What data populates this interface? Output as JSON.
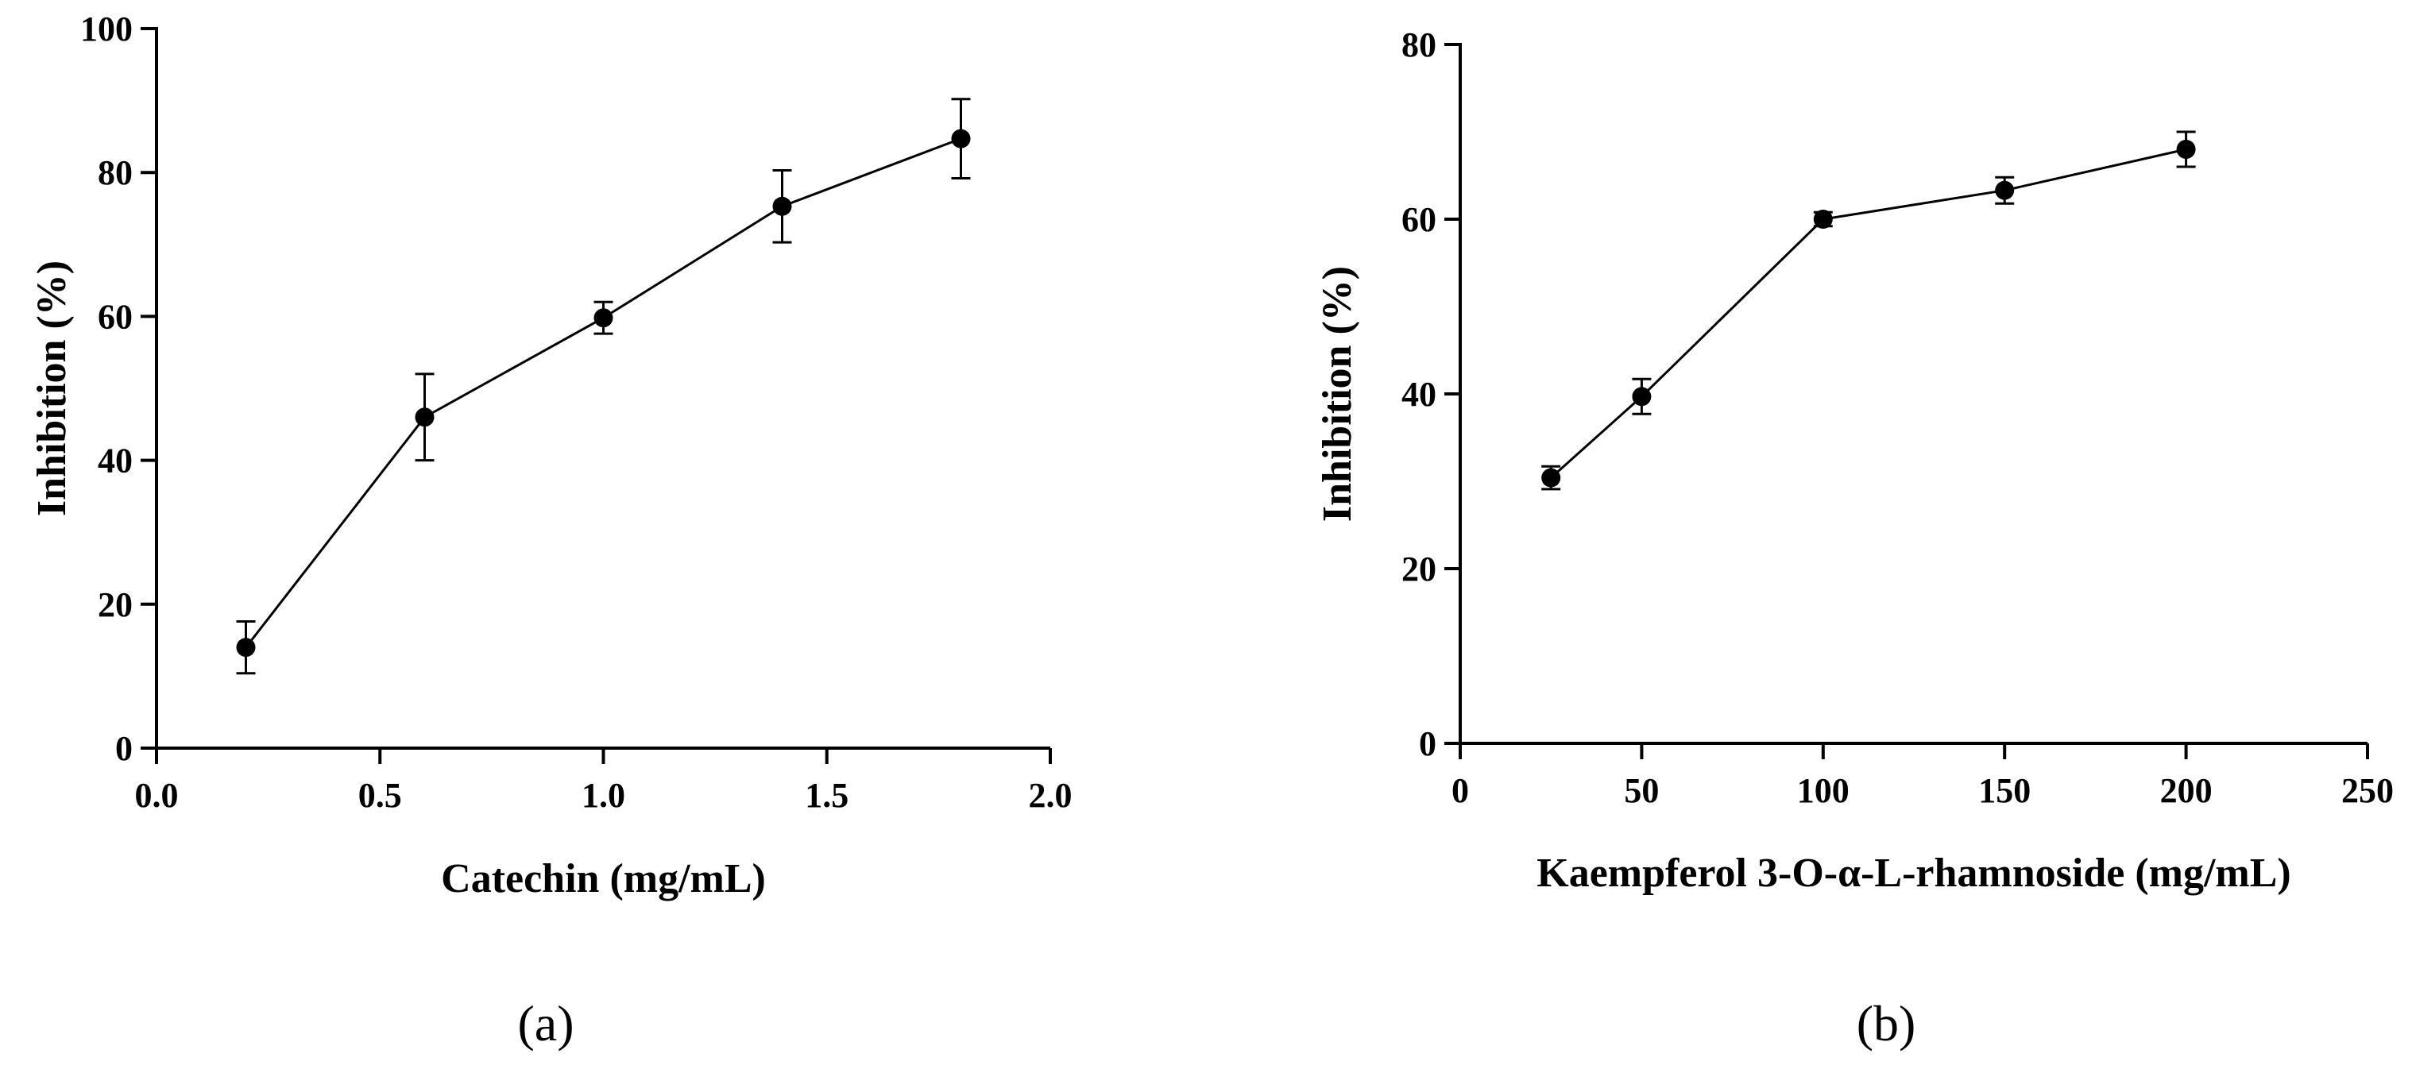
{
  "chart_data": [
    {
      "type": "line",
      "panel_label": "(a)",
      "xlabel": "Catechin (mg/mL)",
      "ylabel": "Inhibition (%)",
      "xlim": [
        0.0,
        2.0
      ],
      "ylim": [
        0,
        100
      ],
      "xticks": [
        0.0,
        0.5,
        1.0,
        1.5,
        2.0
      ],
      "xtick_labels": [
        "0.0",
        "0.5",
        "1.0",
        "1.5",
        "2.0"
      ],
      "yticks": [
        0,
        20,
        40,
        60,
        80,
        100
      ],
      "ytick_labels": [
        "0",
        "20",
        "40",
        "60",
        "80",
        "100"
      ],
      "x": [
        0.2,
        0.6,
        1.0,
        1.4,
        1.8
      ],
      "y": [
        14,
        46,
        59.8,
        75.3,
        84.7
      ],
      "error": [
        3.6,
        6.0,
        2.2,
        5.0,
        5.5
      ],
      "grid": false,
      "legend": "none"
    },
    {
      "type": "line",
      "panel_label": "(b)",
      "xlabel": "Kaempferol 3-O-α-L-rhamnoside (mg/mL)",
      "ylabel": "Inhibition (%)",
      "xlim": [
        0,
        250
      ],
      "ylim": [
        0,
        80
      ],
      "xticks": [
        0,
        50,
        100,
        150,
        200,
        250
      ],
      "xtick_labels": [
        "0",
        "50",
        "100",
        "150",
        "200",
        "250"
      ],
      "yticks": [
        0,
        20,
        40,
        60,
        80
      ],
      "ytick_labels": [
        "0",
        "20",
        "40",
        "60",
        "80"
      ],
      "x": [
        25,
        50,
        100,
        150,
        200
      ],
      "y": [
        30.4,
        39.7,
        60.0,
        63.3,
        68.0
      ],
      "error": [
        1.3,
        2.0,
        0.8,
        1.5,
        2.0
      ],
      "grid": false,
      "legend": "none"
    }
  ]
}
